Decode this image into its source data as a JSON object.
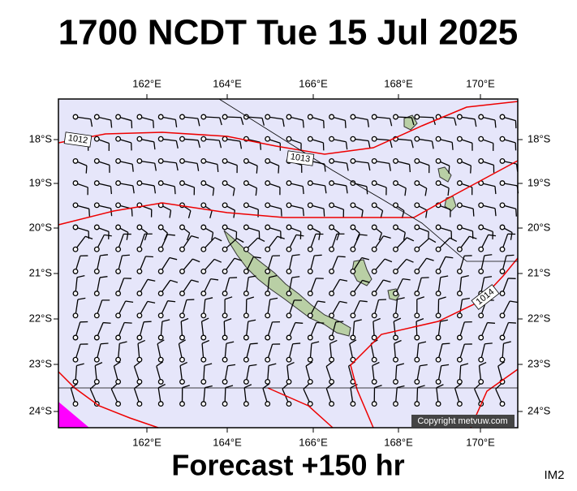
{
  "header": {
    "title": "1700 NCDT Tue 15 Jul 2025"
  },
  "map": {
    "lon_labels": [
      "162°E",
      "164°E",
      "166°E",
      "168°E",
      "170°E"
    ],
    "lat_labels": [
      "18°S",
      "19°S",
      "20°S",
      "21°S",
      "22°S",
      "23°S",
      "24°S"
    ],
    "isobar_labels": [
      "1012",
      "1013",
      "1014"
    ],
    "copyright": "Copyright metvuw.com"
  },
  "footer": {
    "forecast": "Forecast +150 hr",
    "code": "IM2"
  }
}
